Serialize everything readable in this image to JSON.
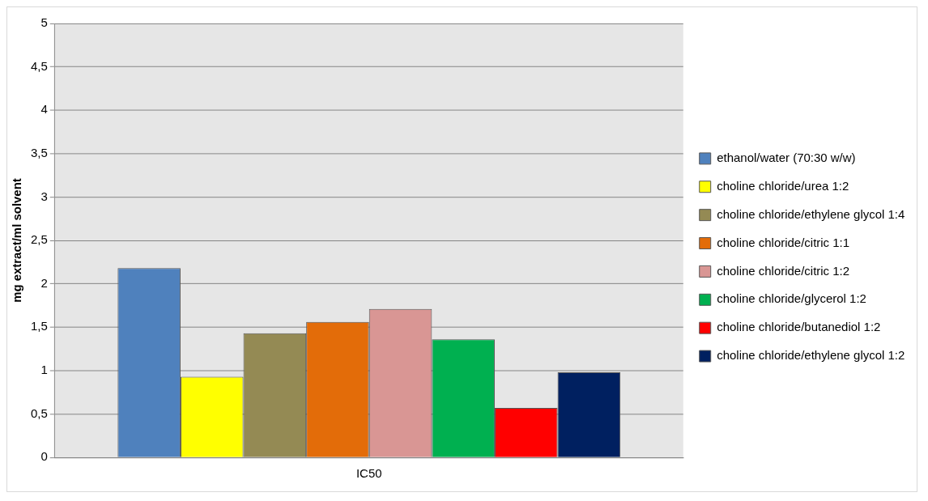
{
  "chart_data": {
    "type": "bar",
    "ylabel": "mg extract/ml solvent",
    "categories": [
      "IC50"
    ],
    "series": [
      {
        "name": "ethanol/water (70:30 w/w)",
        "color": "#4f81bd",
        "values": [
          2.18
        ]
      },
      {
        "name": "choline chloride/urea 1:2",
        "color": "#ffff00",
        "values": [
          0.93
        ]
      },
      {
        "name": "choline chloride/ethylene glycol 1:4",
        "color": "#948a54",
        "values": [
          1.43
        ]
      },
      {
        "name": "choline chloride/citric 1:1",
        "color": "#e36c09",
        "values": [
          1.56
        ]
      },
      {
        "name": "choline chloride/citric 1:2",
        "color": "#d99694",
        "values": [
          1.71
        ]
      },
      {
        "name": "choline chloride/glycerol 1:2",
        "color": "#00b050",
        "values": [
          1.36
        ]
      },
      {
        "name": "choline chloride/butanediol 1:2",
        "color": "#ff0000",
        "values": [
          0.57
        ]
      },
      {
        "name": "choline chloride/ethylene glycol 1:2",
        "color": "#002060",
        "values": [
          0.98
        ]
      }
    ],
    "ylim": [
      0,
      5
    ],
    "yticks": [
      0,
      {
        "value": 0.5,
        "label": "0,5"
      },
      1,
      {
        "value": 1.5,
        "label": "1,5"
      },
      2,
      {
        "value": 2.5,
        "label": "2,5"
      },
      3,
      {
        "value": 3.5,
        "label": "3,5"
      },
      4,
      {
        "value": 4.5,
        "label": "4,5"
      },
      5
    ],
    "grid": "y",
    "legend": "right"
  }
}
